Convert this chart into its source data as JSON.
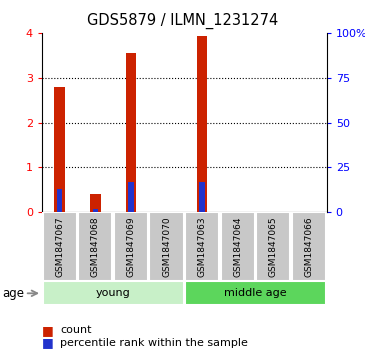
{
  "title": "GDS5879 / ILMN_1231274",
  "samples": [
    "GSM1847067",
    "GSM1847068",
    "GSM1847069",
    "GSM1847070",
    "GSM1847063",
    "GSM1847064",
    "GSM1847065",
    "GSM1847066"
  ],
  "count_values": [
    2.8,
    0.4,
    3.55,
    0.0,
    3.93,
    0.0,
    0.0,
    0.0
  ],
  "percentile_values": [
    0.52,
    0.08,
    0.68,
    0.0,
    0.68,
    0.0,
    0.0,
    0.0
  ],
  "ylim_left": [
    0,
    4
  ],
  "ylim_right": [
    0,
    100
  ],
  "yticks_left": [
    0,
    1,
    2,
    3,
    4
  ],
  "yticks_right": [
    0,
    25,
    50,
    75,
    100
  ],
  "yticklabels_right": [
    "0",
    "25",
    "50",
    "75",
    "100%"
  ],
  "bar_color": "#CC2200",
  "percentile_color": "#2233CC",
  "grid_color": "black",
  "red_bar_width": 0.3,
  "blue_bar_width": 0.15,
  "sample_box_color": "#C8C8C8",
  "young_color": "#C8F0C8",
  "middle_color": "#5CD65C",
  "age_label": "age",
  "legend_count_label": "count",
  "legend_percentile_label": "percentile rank within the sample",
  "group_info": [
    {
      "name": "young",
      "start": 0,
      "end": 3,
      "color": "#C8F0C8"
    },
    {
      "name": "middle age",
      "start": 4,
      "end": 7,
      "color": "#5CD65C"
    }
  ]
}
